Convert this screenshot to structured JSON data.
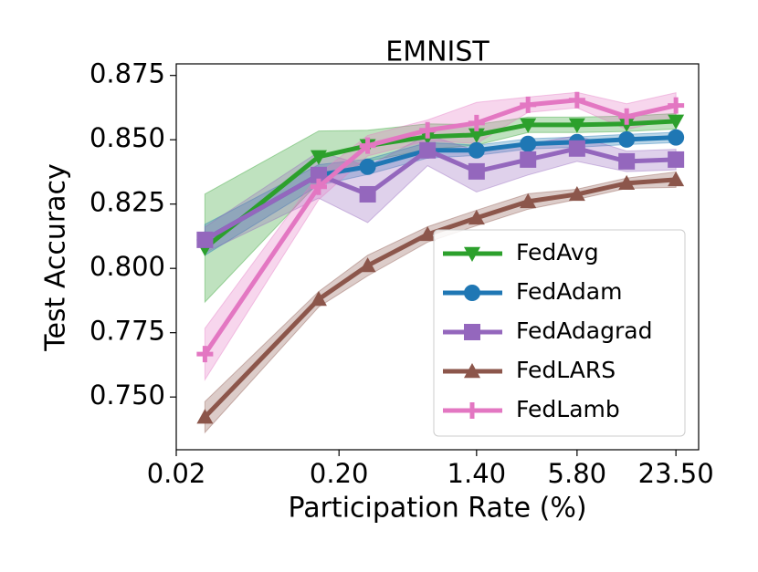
{
  "chart_data": {
    "type": "line",
    "title": "EMNIST",
    "x_label": "Participation Rate (%)",
    "y_label": "Test Accuracy",
    "x": [
      0.03,
      0.15,
      0.3,
      0.7,
      1.4,
      2.9,
      5.8,
      11.7,
      23.5
    ],
    "xscale": "log",
    "xlim": [
      0.02,
      32.4
    ],
    "ylim": [
      0.7295,
      0.8795
    ],
    "xticks": [
      {
        "value": 0.02,
        "label": "0.02"
      },
      {
        "value": 0.2,
        "label": "0.20"
      },
      {
        "value": 1.4,
        "label": "1.40"
      },
      {
        "value": 5.8,
        "label": "5.80"
      },
      {
        "value": 23.5,
        "label": "23.50"
      }
    ],
    "yticks": [
      {
        "value": 0.75,
        "label": "0.750"
      },
      {
        "value": 0.775,
        "label": "0.775"
      },
      {
        "value": 0.8,
        "label": "0.800"
      },
      {
        "value": 0.825,
        "label": "0.825"
      },
      {
        "value": 0.85,
        "label": "0.850"
      },
      {
        "value": 0.875,
        "label": "0.875"
      }
    ],
    "legend": "lower right",
    "series": [
      {
        "name": "FedAvg",
        "color": "#2ca02c",
        "marker": "triangle-down",
        "values": [
          0.8079,
          0.8434,
          0.8477,
          0.8512,
          0.8519,
          0.8558,
          0.8558,
          0.8562,
          0.8572
        ],
        "errors": [
          0.021,
          0.01,
          0.006,
          0.005,
          0.004,
          0.003,
          0.003,
          0.003,
          0.003
        ]
      },
      {
        "name": "FedAdam",
        "color": "#1f77b4",
        "marker": "circle",
        "values": [
          0.8111,
          0.8363,
          0.8395,
          0.8459,
          0.8459,
          0.8484,
          0.8491,
          0.8501,
          0.8509
        ],
        "errors": [
          0.006,
          0.004,
          0.003,
          0.003,
          0.002,
          0.002,
          0.002,
          0.002,
          0.002
        ]
      },
      {
        "name": "FedAdagrad",
        "color": "#9467bd",
        "marker": "square",
        "values": [
          0.8111,
          0.8363,
          0.8288,
          0.8459,
          0.8377,
          0.8423,
          0.8466,
          0.8416,
          0.8423
        ],
        "errors": [
          0.005,
          0.009,
          0.011,
          0.006,
          0.008,
          0.006,
          0.005,
          0.004,
          0.004
        ]
      },
      {
        "name": "FedLARS",
        "color": "#8c564b",
        "marker": "triangle-up",
        "values": [
          0.7422,
          0.788,
          0.8011,
          0.8132,
          0.8196,
          0.826,
          0.8288,
          0.8331,
          0.8345
        ],
        "errors": [
          0.006,
          0.003,
          0.004,
          0.003,
          0.003,
          0.003,
          0.002,
          0.002,
          0.003
        ]
      },
      {
        "name": "FedLamb",
        "color": "#e377c2",
        "marker": "plus",
        "values": [
          0.7667,
          0.8317,
          0.8477,
          0.8537,
          0.8565,
          0.8636,
          0.8654,
          0.859,
          0.8633
        ],
        "errors": [
          0.01,
          0.005,
          0.004,
          0.004,
          0.008,
          0.003,
          0.003,
          0.005,
          0.005
        ]
      }
    ]
  }
}
